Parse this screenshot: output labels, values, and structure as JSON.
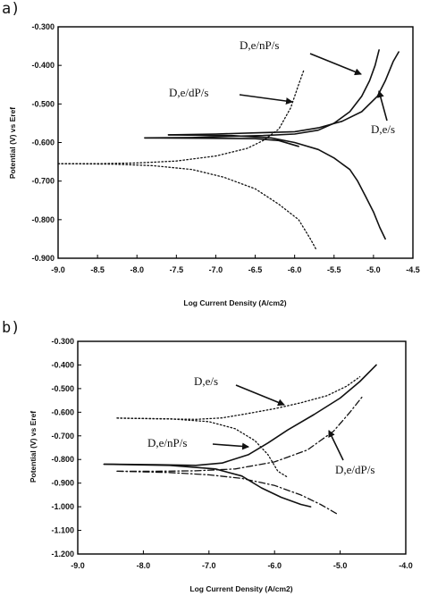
{
  "chart_data": [
    {
      "panel_label": "a)",
      "type": "line",
      "title": "",
      "xlabel": "Log Current Density (A/cm2)",
      "ylabel": "Potential (V) vs Eref",
      "xlim": [
        -9.0,
        -4.5
      ],
      "ylim": [
        -0.9,
        -0.3
      ],
      "x_ticks": [
        "-9.0",
        "-8.5",
        "-8.0",
        "-7.5",
        "-7.0",
        "-6.5",
        "-6.0",
        "-5.5",
        "-5.0",
        "-4.5"
      ],
      "y_ticks": [
        "-0.300",
        "-0.400",
        "-0.500",
        "-0.600",
        "-0.700",
        "-0.800",
        "-0.900"
      ],
      "grid": false,
      "series": [
        {
          "name": "D,e/nP/s",
          "style": "solid",
          "anodic": [
            [
              -7.9,
              -0.588
            ],
            [
              -7.3,
              -0.587
            ],
            [
              -6.8,
              -0.584
            ],
            [
              -6.4,
              -0.582
            ],
            [
              -6.0,
              -0.578
            ],
            [
              -5.7,
              -0.568
            ],
            [
              -5.5,
              -0.55
            ],
            [
              -5.3,
              -0.52
            ],
            [
              -5.15,
              -0.48
            ],
            [
              -5.05,
              -0.44
            ],
            [
              -4.98,
              -0.4
            ],
            [
              -4.93,
              -0.36
            ]
          ],
          "cathodic": [
            [
              -7.9,
              -0.588
            ],
            [
              -7.0,
              -0.589
            ],
            [
              -6.5,
              -0.59
            ],
            [
              -6.2,
              -0.595
            ],
            [
              -5.95,
              -0.61
            ]
          ]
        },
        {
          "name": "D,e/s",
          "style": "solid",
          "anodic": [
            [
              -7.6,
              -0.58
            ],
            [
              -7.0,
              -0.578
            ],
            [
              -6.5,
              -0.575
            ],
            [
              -6.0,
              -0.572
            ],
            [
              -5.7,
              -0.562
            ],
            [
              -5.4,
              -0.545
            ],
            [
              -5.15,
              -0.52
            ],
            [
              -4.95,
              -0.48
            ],
            [
              -4.85,
              -0.44
            ],
            [
              -4.75,
              -0.39
            ],
            [
              -4.68,
              -0.365
            ]
          ],
          "cathodic": [
            [
              -7.6,
              -0.58
            ],
            [
              -6.8,
              -0.582
            ],
            [
              -6.3,
              -0.588
            ],
            [
              -6.0,
              -0.6
            ],
            [
              -5.7,
              -0.618
            ],
            [
              -5.5,
              -0.64
            ],
            [
              -5.3,
              -0.67
            ],
            [
              -5.2,
              -0.7
            ],
            [
              -5.1,
              -0.74
            ],
            [
              -5.0,
              -0.78
            ],
            [
              -4.92,
              -0.82
            ],
            [
              -4.85,
              -0.85
            ]
          ]
        },
        {
          "name": "D,e/dP/s",
          "style": "dotted",
          "anodic": [
            [
              -9.0,
              -0.655
            ],
            [
              -8.5,
              -0.655
            ],
            [
              -8.0,
              -0.653
            ],
            [
              -7.5,
              -0.648
            ],
            [
              -7.0,
              -0.635
            ],
            [
              -6.6,
              -0.615
            ],
            [
              -6.4,
              -0.595
            ],
            [
              -6.2,
              -0.565
            ],
            [
              -6.05,
              -0.51
            ],
            [
              -5.95,
              -0.45
            ],
            [
              -5.88,
              -0.41
            ]
          ],
          "cathodic": [
            [
              -9.0,
              -0.655
            ],
            [
              -8.3,
              -0.656
            ],
            [
              -7.8,
              -0.66
            ],
            [
              -7.3,
              -0.67
            ],
            [
              -6.9,
              -0.69
            ],
            [
              -6.5,
              -0.72
            ],
            [
              -6.2,
              -0.76
            ],
            [
              -5.95,
              -0.8
            ],
            [
              -5.8,
              -0.85
            ],
            [
              -5.72,
              -0.88
            ]
          ]
        }
      ],
      "annotations": [
        "D,e/nP/s",
        "D,e/dP/s",
        "D,e/s"
      ]
    },
    {
      "panel_label": "b)",
      "type": "line",
      "title": "",
      "xlabel": "Log Current Density (A/cm2)",
      "ylabel": "Potential (V) vs Eref",
      "xlim": [
        -9.0,
        -4.0
      ],
      "ylim": [
        -1.2,
        -0.3
      ],
      "x_ticks": [
        "-9.0",
        "-8.0",
        "-7.0",
        "-6.0",
        "-5.0",
        "-4.0"
      ],
      "y_ticks": [
        "-0.300",
        "-0.400",
        "-0.500",
        "-0.600",
        "-0.700",
        "-0.800",
        "-0.900",
        "-1.000",
        "-1.100",
        "-1.200"
      ],
      "grid": false,
      "series": [
        {
          "name": "D,e/s",
          "style": "dotted",
          "anodic": [
            [
              -8.4,
              -0.625
            ],
            [
              -7.8,
              -0.628
            ],
            [
              -7.2,
              -0.63
            ],
            [
              -6.8,
              -0.624
            ],
            [
              -6.4,
              -0.605
            ],
            [
              -6.0,
              -0.585
            ],
            [
              -5.6,
              -0.56
            ],
            [
              -5.2,
              -0.53
            ],
            [
              -4.9,
              -0.49
            ],
            [
              -4.7,
              -0.45
            ]
          ],
          "cathodic": [
            [
              -8.4,
              -0.625
            ],
            [
              -7.6,
              -0.628
            ],
            [
              -7.0,
              -0.64
            ],
            [
              -6.6,
              -0.67
            ],
            [
              -6.3,
              -0.72
            ],
            [
              -6.1,
              -0.78
            ],
            [
              -5.95,
              -0.85
            ],
            [
              -5.8,
              -0.875
            ]
          ]
        },
        {
          "name": "D,e/nP/s",
          "style": "solid",
          "anodic": [
            [
              -8.6,
              -0.82
            ],
            [
              -7.8,
              -0.822
            ],
            [
              -7.2,
              -0.825
            ],
            [
              -6.8,
              -0.815
            ],
            [
              -6.4,
              -0.78
            ],
            [
              -6.1,
              -0.73
            ],
            [
              -5.8,
              -0.675
            ],
            [
              -5.4,
              -0.61
            ],
            [
              -5.0,
              -0.54
            ],
            [
              -4.7,
              -0.47
            ],
            [
              -4.45,
              -0.4
            ]
          ],
          "cathodic": [
            [
              -8.6,
              -0.82
            ],
            [
              -7.6,
              -0.825
            ],
            [
              -6.9,
              -0.84
            ],
            [
              -6.5,
              -0.87
            ],
            [
              -6.2,
              -0.92
            ],
            [
              -5.9,
              -0.96
            ],
            [
              -5.6,
              -0.99
            ],
            [
              -5.45,
              -1.0
            ]
          ]
        },
        {
          "name": "D,e/dP/s",
          "style": "dashdot",
          "anodic": [
            [
              -8.4,
              -0.85
            ],
            [
              -7.8,
              -0.85
            ],
            [
              -7.2,
              -0.848
            ],
            [
              -6.6,
              -0.84
            ],
            [
              -6.0,
              -0.81
            ],
            [
              -5.5,
              -0.76
            ],
            [
              -5.1,
              -0.68
            ],
            [
              -4.85,
              -0.6
            ],
            [
              -4.65,
              -0.53
            ]
          ],
          "cathodic": [
            [
              -8.4,
              -0.85
            ],
            [
              -7.6,
              -0.855
            ],
            [
              -7.0,
              -0.865
            ],
            [
              -6.5,
              -0.88
            ],
            [
              -6.0,
              -0.91
            ],
            [
              -5.6,
              -0.95
            ],
            [
              -5.3,
              -0.99
            ],
            [
              -5.05,
              -1.03
            ]
          ]
        }
      ],
      "annotations": [
        "D,e/s",
        "D,e/nP/s",
        "D,e/dP/s"
      ]
    }
  ]
}
